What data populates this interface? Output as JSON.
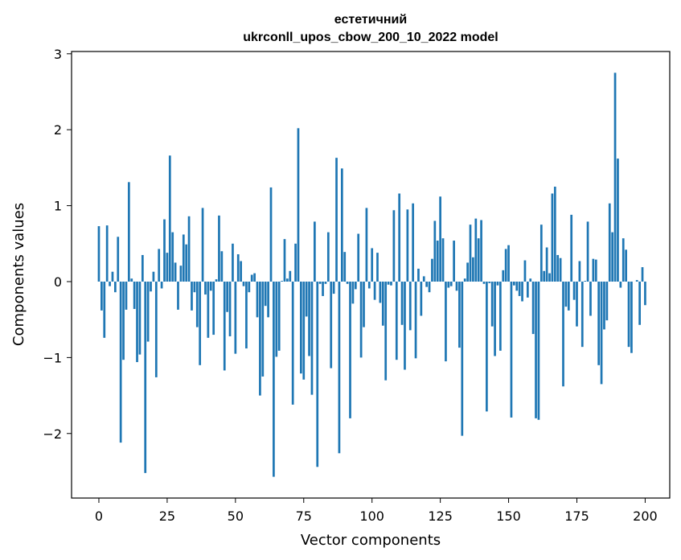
{
  "chart_data": {
    "type": "bar",
    "title_lines": [
      "естетичний",
      "ukrconll_upos_cbow_200_10_2022 model"
    ],
    "xlabel": "Vector components",
    "ylabel": "Components values",
    "xlim": [
      -10,
      209
    ],
    "ylim": [
      -2.85,
      3.03
    ],
    "xticks": [
      0,
      25,
      50,
      75,
      100,
      125,
      150,
      175,
      200
    ],
    "xtick_labels": [
      "0",
      "25",
      "50",
      "75",
      "100",
      "125",
      "150",
      "175",
      "200"
    ],
    "yticks": [
      -2,
      -1,
      0,
      1,
      2,
      3
    ],
    "ytick_labels": [
      "−2",
      "−1",
      "0",
      "1",
      "2",
      "3"
    ],
    "bar_color": "#1f77b4",
    "grid": false,
    "values": [
      0.73,
      -0.38,
      -0.74,
      0.74,
      -0.06,
      0.13,
      -0.14,
      0.59,
      -2.12,
      -1.03,
      -0.37,
      1.31,
      0.04,
      -0.36,
      -1.06,
      -0.96,
      0.35,
      -2.52,
      -0.79,
      -0.13,
      0.13,
      -1.26,
      0.43,
      -0.09,
      0.82,
      0.38,
      1.66,
      0.65,
      0.25,
      -0.37,
      0.21,
      0.62,
      0.49,
      0.86,
      -0.38,
      -0.14,
      -0.6,
      -1.1,
      0.97,
      -0.17,
      -0.74,
      -0.12,
      -0.7,
      0.03,
      0.87,
      0.4,
      -1.17,
      -0.4,
      -0.72,
      0.5,
      -0.95,
      0.36,
      0.27,
      -0.06,
      -0.88,
      -0.14,
      0.09,
      0.11,
      -0.47,
      -1.5,
      -1.25,
      -0.32,
      -0.47,
      1.24,
      -2.57,
      -0.99,
      -0.91,
      0.01,
      0.56,
      0.04,
      0.14,
      -1.62,
      0.5,
      2.02,
      -1.21,
      -1.29,
      -0.46,
      -0.98,
      -1.49,
      0.79,
      -2.44,
      -0.03,
      -0.19,
      -0.03,
      0.65,
      -1.14,
      -0.16,
      1.63,
      -2.26,
      1.49,
      0.39,
      -0.03,
      -1.8,
      -0.29,
      -0.1,
      0.63,
      -1.0,
      -0.6,
      0.97,
      -0.09,
      0.44,
      -0.24,
      0.38,
      -0.28,
      -0.58,
      -1.3,
      -0.04,
      -0.05,
      0.94,
      -1.03,
      1.16,
      -0.57,
      -1.16,
      0.95,
      -0.64,
      1.03,
      -1.01,
      0.17,
      -0.45,
      0.07,
      -0.07,
      -0.14,
      0.3,
      0.8,
      0.54,
      1.12,
      0.57,
      -1.05,
      -0.08,
      -0.06,
      0.54,
      -0.12,
      -0.87,
      -2.03,
      0.04,
      0.25,
      0.75,
      0.32,
      0.83,
      0.57,
      0.81,
      -0.03,
      -1.71,
      -0.02,
      -0.59,
      -0.98,
      -0.05,
      -0.91,
      0.15,
      0.43,
      0.48,
      -1.79,
      -0.05,
      -0.12,
      -0.19,
      -0.26,
      0.28,
      -0.21,
      0.04,
      -0.69,
      -1.8,
      -1.82,
      0.75,
      0.14,
      0.45,
      0.11,
      1.16,
      1.25,
      0.35,
      0.31,
      -1.38,
      -0.33,
      -0.38,
      0.88,
      -0.24,
      -0.59,
      0.27,
      -0.86,
      0.01,
      0.79,
      -0.45,
      0.3,
      0.29,
      -1.1,
      -1.35,
      -0.63,
      -0.51,
      1.03,
      0.65,
      2.75,
      1.62,
      -0.08,
      0.57,
      0.42,
      -0.86,
      -0.94,
      0.0,
      0.02,
      -0.57,
      0.19,
      -0.31
    ]
  }
}
